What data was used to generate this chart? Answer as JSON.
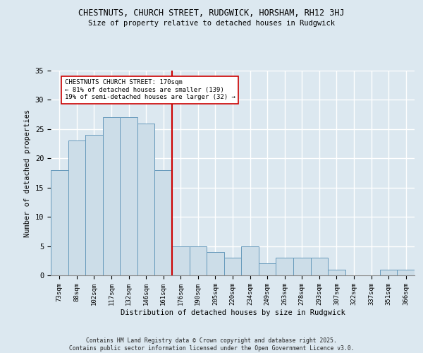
{
  "title1": "CHESTNUTS, CHURCH STREET, RUDGWICK, HORSHAM, RH12 3HJ",
  "title2": "Size of property relative to detached houses in Rudgwick",
  "xlabel": "Distribution of detached houses by size in Rudgwick",
  "ylabel": "Number of detached properties",
  "bar_labels": [
    "73sqm",
    "88sqm",
    "102sqm",
    "117sqm",
    "132sqm",
    "146sqm",
    "161sqm",
    "176sqm",
    "190sqm",
    "205sqm",
    "220sqm",
    "234sqm",
    "249sqm",
    "263sqm",
    "278sqm",
    "293sqm",
    "307sqm",
    "322sqm",
    "337sqm",
    "351sqm",
    "366sqm"
  ],
  "bar_values": [
    18,
    23,
    24,
    27,
    27,
    26,
    18,
    5,
    5,
    4,
    3,
    5,
    2,
    3,
    3,
    3,
    1,
    0,
    0,
    1,
    1
  ],
  "bar_color": "#ccdde8",
  "bar_edge_color": "#6699bb",
  "vline_color": "#cc0000",
  "annotation_text": "CHESTNUTS CHURCH STREET: 170sqm\n← 81% of detached houses are smaller (139)\n19% of semi-detached houses are larger (32) →",
  "annotation_box_color": "#ffffff",
  "annotation_box_edge": "#cc0000",
  "footer": "Contains HM Land Registry data © Crown copyright and database right 2025.\nContains public sector information licensed under the Open Government Licence v3.0.",
  "ylim": [
    0,
    35
  ],
  "background_color": "#dce8f0",
  "grid_color": "#ffffff"
}
